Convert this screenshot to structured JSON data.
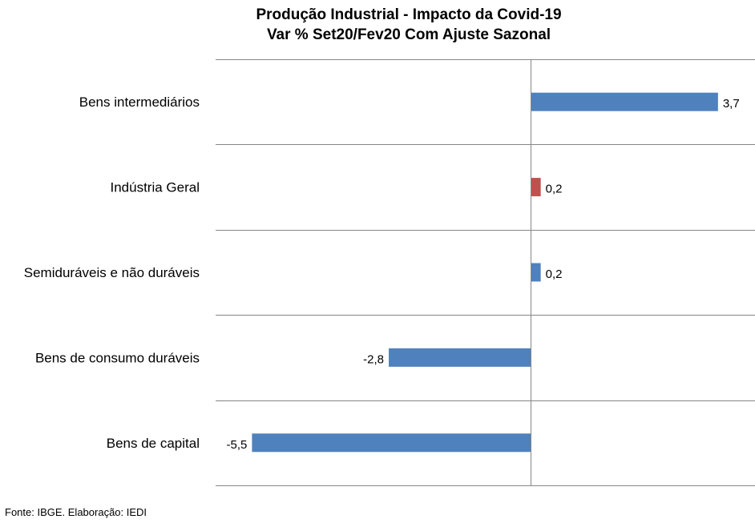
{
  "chart_data": {
    "type": "bar",
    "orientation": "horizontal",
    "title": "Produção Industrial - Impacto da Covid-19",
    "subtitle": "Var % Set20/Fev20 Com Ajuste Sazonal",
    "categories": [
      "Bens intermediários",
      "Indústria Geral",
      "Semiduráveis e não duráveis",
      "Bens de consumo duráveis",
      "Bens de capital"
    ],
    "values": [
      3.7,
      0.2,
      0.2,
      -2.8,
      -5.5
    ],
    "value_labels": [
      "3,7",
      "0,2",
      "0,2",
      "-2,8",
      "-5,5"
    ],
    "colors": [
      "#4f81bd",
      "#c0504d",
      "#4f81bd",
      "#4f81bd",
      "#4f81bd"
    ],
    "xlim": [
      -6.2,
      4.4
    ],
    "grid": "horizontal separators between categories",
    "legend": "none"
  },
  "source": "Fonte: IBGE. Elaboração: IEDI"
}
